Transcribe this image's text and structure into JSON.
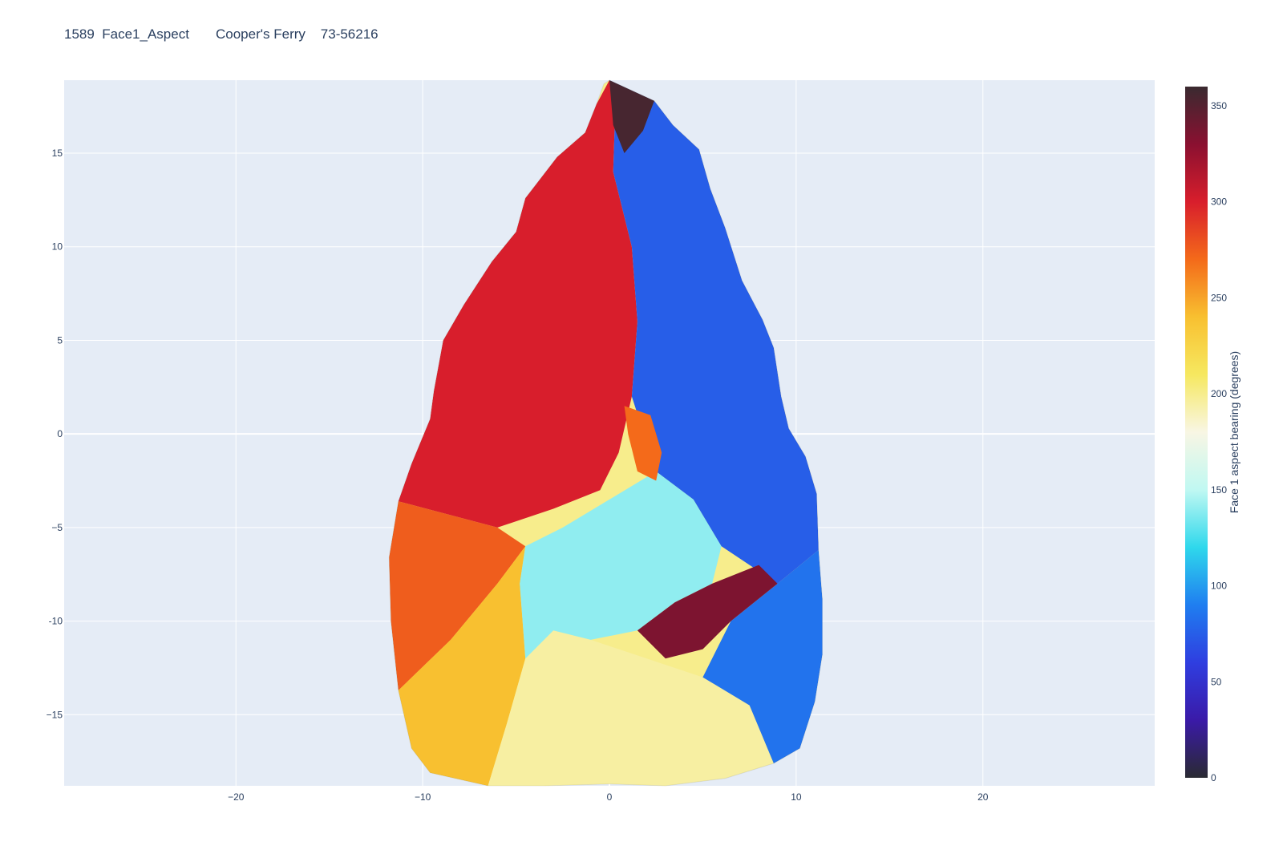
{
  "chart_data": {
    "type": "heatmap",
    "title": "1589  Face1_Aspect       Cooper's Ferry    73-56216",
    "xlabel": "",
    "ylabel": "",
    "xlim": [
      -29.2,
      29.2
    ],
    "ylim": [
      -18.8,
      18.9
    ],
    "x_ticks": [
      -20,
      -10,
      0,
      10,
      20
    ],
    "x_tick_labels": [
      "−20",
      "−10",
      "0",
      "10",
      "20"
    ],
    "y_ticks": [
      15,
      10,
      5,
      0,
      -5,
      -10,
      -15
    ],
    "y_tick_labels": [
      "15",
      "10",
      "5",
      "0",
      "−5",
      "-10",
      "−15"
    ],
    "grid": true,
    "colorbar": {
      "title": "Face 1 aspect bearing (degrees)",
      "range": [
        0,
        360
      ],
      "ticks": [
        0,
        50,
        100,
        150,
        200,
        250,
        300,
        350
      ],
      "tick_labels": [
        "0",
        "50",
        "100",
        "150",
        "200",
        "250",
        "300",
        "350"
      ],
      "colorscale": [
        "#2a2a32",
        "#3a1aa8",
        "#2f3ee0",
        "#1f7ef0",
        "#2fd8ec",
        "#c0f8f2",
        "#f8f6e4",
        "#f6e860",
        "#f8c030",
        "#f46a1a",
        "#d81e2c",
        "#8a1030",
        "#3a2a30"
      ]
    },
    "outline": [
      [
        0,
        18.9
      ],
      [
        2.4,
        17.8
      ],
      [
        3.4,
        16.5
      ],
      [
        4.8,
        15.2
      ],
      [
        5.4,
        13.1
      ],
      [
        6.2,
        11.0
      ],
      [
        7.1,
        8.2
      ],
      [
        8.2,
        6.1
      ],
      [
        8.8,
        4.6
      ],
      [
        9.2,
        2.0
      ],
      [
        9.6,
        0.3
      ],
      [
        10.5,
        -1.2
      ],
      [
        11.1,
        -3.2
      ],
      [
        11.2,
        -6.2
      ],
      [
        11.4,
        -8.8
      ],
      [
        11.4,
        -11.8
      ],
      [
        11.0,
        -14.3
      ],
      [
        10.2,
        -16.8
      ],
      [
        8.8,
        -17.6
      ],
      [
        6.2,
        -18.4
      ],
      [
        3.0,
        -18.8
      ],
      [
        0,
        -18.7
      ],
      [
        -3.5,
        -18.8
      ],
      [
        -6.5,
        -18.8
      ],
      [
        -9.6,
        -18.1
      ],
      [
        -10.6,
        -16.8
      ],
      [
        -11.3,
        -13.7
      ],
      [
        -11.7,
        -10.0
      ],
      [
        -11.8,
        -6.6
      ],
      [
        -11.3,
        -3.6
      ],
      [
        -10.6,
        -1.6
      ],
      [
        -9.6,
        0.8
      ],
      [
        -9.4,
        2.3
      ],
      [
        -8.9,
        5.0
      ],
      [
        -7.8,
        6.9
      ],
      [
        -6.3,
        9.2
      ],
      [
        -5.0,
        10.8
      ],
      [
        -4.5,
        12.6
      ],
      [
        -2.8,
        14.8
      ],
      [
        -1.3,
        16.1
      ],
      [
        -0.7,
        17.6
      ],
      [
        -0.3,
        18.7
      ]
    ],
    "regions": [
      {
        "name": "upper-left-red",
        "value": 300,
        "points": [
          [
            0,
            18.9
          ],
          [
            -0.7,
            17.6
          ],
          [
            -1.3,
            16.1
          ],
          [
            -2.8,
            14.8
          ],
          [
            -4.5,
            12.6
          ],
          [
            -5.0,
            10.8
          ],
          [
            -6.3,
            9.2
          ],
          [
            -7.8,
            6.9
          ],
          [
            -8.9,
            5.0
          ],
          [
            -9.4,
            2.3
          ],
          [
            -9.6,
            0.8
          ],
          [
            -10.6,
            -1.6
          ],
          [
            -11.3,
            -3.6
          ],
          [
            -6,
            -5
          ],
          [
            -3,
            -4
          ],
          [
            -0.5,
            -3
          ],
          [
            0.5,
            -1
          ],
          [
            1.2,
            2
          ],
          [
            1.5,
            6
          ],
          [
            1.2,
            10
          ],
          [
            0.2,
            14
          ],
          [
            0.3,
            17
          ]
        ]
      },
      {
        "name": "left-orange",
        "value": 275,
        "points": [
          [
            -11.3,
            -3.6
          ],
          [
            -11.8,
            -6.6
          ],
          [
            -11.7,
            -10.0
          ],
          [
            -11.3,
            -13.7
          ],
          [
            -8.5,
            -11
          ],
          [
            -6,
            -8
          ],
          [
            -4.5,
            -6
          ],
          [
            -6,
            -5
          ]
        ]
      },
      {
        "name": "lower-left-yellow",
        "value": 240,
        "points": [
          [
            -11.3,
            -13.7
          ],
          [
            -10.6,
            -16.8
          ],
          [
            -9.6,
            -18.1
          ],
          [
            -6.5,
            -18.8
          ],
          [
            -5.5,
            -15.5
          ],
          [
            -4.5,
            -12
          ],
          [
            -4.8,
            -8
          ],
          [
            -4.5,
            -6
          ],
          [
            -6,
            -8
          ],
          [
            -8.5,
            -11
          ]
        ]
      },
      {
        "name": "bottom-cream",
        "value": 195,
        "points": [
          [
            -6.5,
            -18.8
          ],
          [
            -3.5,
            -18.8
          ],
          [
            0,
            -18.7
          ],
          [
            3.0,
            -18.8
          ],
          [
            6.2,
            -18.4
          ],
          [
            8.8,
            -17.6
          ],
          [
            7.5,
            -14.5
          ],
          [
            5,
            -13
          ],
          [
            2,
            -12
          ],
          [
            -1,
            -11
          ],
          [
            -3,
            -10.5
          ],
          [
            -4.5,
            -12
          ],
          [
            -5.5,
            -15.5
          ]
        ]
      },
      {
        "name": "lower-cyan",
        "value": 140,
        "points": [
          [
            -4.5,
            -6
          ],
          [
            -2.5,
            -5
          ],
          [
            0,
            -3.5
          ],
          [
            2.5,
            -2
          ],
          [
            4.5,
            -3.5
          ],
          [
            6,
            -6
          ],
          [
            5.5,
            -8
          ],
          [
            3.5,
            -9
          ],
          [
            1.5,
            -10.5
          ],
          [
            -1,
            -11
          ],
          [
            -3,
            -10.5
          ],
          [
            -4.5,
            -12
          ],
          [
            -4.8,
            -8
          ]
        ]
      },
      {
        "name": "lower-right-blue",
        "value": 85,
        "points": [
          [
            11.2,
            -6.2
          ],
          [
            11.4,
            -8.8
          ],
          [
            11.4,
            -11.8
          ],
          [
            11.0,
            -14.3
          ],
          [
            10.2,
            -16.8
          ],
          [
            8.8,
            -17.6
          ],
          [
            7.5,
            -14.5
          ],
          [
            5,
            -13
          ],
          [
            6.5,
            -10
          ],
          [
            9,
            -8
          ]
        ]
      },
      {
        "name": "upper-right-blue",
        "value": 75,
        "points": [
          [
            0.3,
            17
          ],
          [
            0.2,
            14
          ],
          [
            1.2,
            10
          ],
          [
            1.5,
            6
          ],
          [
            1.2,
            2
          ],
          [
            2.5,
            -2
          ],
          [
            4.5,
            -3.5
          ],
          [
            6,
            -6
          ],
          [
            9,
            -8
          ],
          [
            11.2,
            -6.2
          ],
          [
            11.1,
            -3.2
          ],
          [
            10.5,
            -1.2
          ],
          [
            9.6,
            0.3
          ],
          [
            9.2,
            2.0
          ],
          [
            8.8,
            4.6
          ],
          [
            8.2,
            6.1
          ],
          [
            7.1,
            8.2
          ],
          [
            6.2,
            11.0
          ],
          [
            5.4,
            13.1
          ],
          [
            4.8,
            15.2
          ],
          [
            3.4,
            16.5
          ],
          [
            2.4,
            17.8
          ],
          [
            0,
            18.9
          ]
        ]
      },
      {
        "name": "center-dark-red",
        "value": 335,
        "points": [
          [
            1.5,
            -10.5
          ],
          [
            3.5,
            -9
          ],
          [
            5.5,
            -8
          ],
          [
            8,
            -7
          ],
          [
            9,
            -8
          ],
          [
            6.5,
            -10
          ],
          [
            5,
            -11.5
          ],
          [
            3,
            -12
          ]
        ]
      },
      {
        "name": "tip-dark",
        "value": 355,
        "points": [
          [
            0,
            18.9
          ],
          [
            2.4,
            17.8
          ],
          [
            1.8,
            16.2
          ],
          [
            0.8,
            15
          ],
          [
            0.2,
            16.5
          ]
        ]
      },
      {
        "name": "center-orange-flake",
        "value": 270,
        "points": [
          [
            0.8,
            1.5
          ],
          [
            2.2,
            1
          ],
          [
            2.8,
            -1
          ],
          [
            2.5,
            -2.5
          ],
          [
            1.5,
            -2
          ],
          [
            1,
            0
          ]
        ]
      }
    ]
  }
}
